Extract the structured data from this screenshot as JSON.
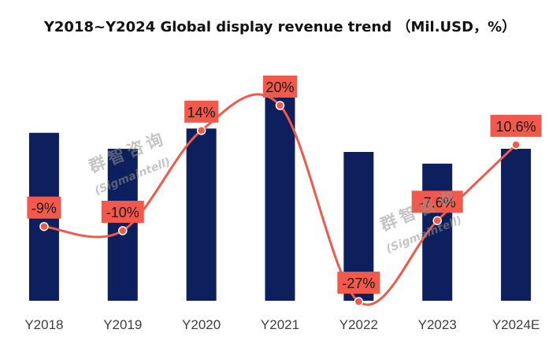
{
  "title": "Y2018~Y2024 Global display revenue trend  （Mil.USD，%）",
  "watermark": {
    "chinese": "群智咨询",
    "english": "(Sigmaintell)"
  },
  "colors": {
    "bar": "#0d1f5c",
    "line": "#ee5a4b",
    "label_bg": "#f2594b",
    "label_text": "#1a1a1a",
    "axis_text": "#404040"
  },
  "chart_data": {
    "type": "bar",
    "categories": [
      "Y2018",
      "Y2019",
      "Y2020",
      "Y2021",
      "Y2022",
      "Y2023",
      "Y2024E"
    ],
    "series": [
      {
        "type": "bar",
        "values": [
          1.58,
          1.43,
          1.62,
          1.93,
          1.4,
          1.29,
          1.43
        ]
      },
      {
        "type": "line",
        "values": [
          -9,
          -10,
          14,
          20,
          -27,
          -7.6,
          10.6
        ],
        "labels": [
          "-9%",
          "-10%",
          "14%",
          "20%",
          "-27%",
          "-7.6%",
          "10.6%"
        ]
      }
    ],
    "grid": false,
    "legend": "none"
  }
}
